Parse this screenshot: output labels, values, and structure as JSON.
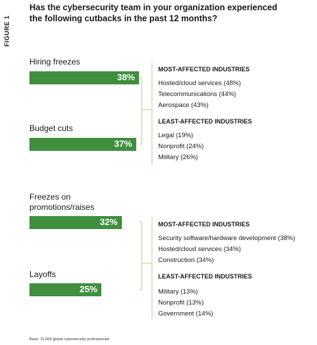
{
  "figure_label": "FIGURE 1",
  "title_line1": "Has the cybersecurity team in your organization experienced",
  "title_line2": "the following cutbacks in the past 12 months?",
  "chart_data": {
    "type": "bar",
    "title": "Has the cybersecurity team in your organization experienced the following cutbacks in the past 12 months?",
    "categories": [
      "Hiring freezes",
      "Budget cuts",
      "Freezes on promotions/raises",
      "Layoffs"
    ],
    "values": [
      38,
      37,
      32,
      25
    ],
    "value_labels": [
      "38%",
      "37%",
      "32%",
      "25%"
    ],
    "xlim": [
      0,
      38
    ],
    "grid": false,
    "legend": "none"
  },
  "categories_display": {
    "hiring": "Hiring freezes",
    "budget": "Budget cuts",
    "promo_line1": "Freezes on",
    "promo_line2": "promotions/raises",
    "layoffs": "Layoffs"
  },
  "group1": {
    "most_header": "MOST-AFFECTED INDUSTRIES",
    "most": [
      "Hosted/cloud services (48%)",
      "Telecommunications (44%)",
      "Aerospace (43%)"
    ],
    "least_header": "LEAST-AFFECTED INDUSTRIES",
    "least": [
      "Legal (19%)",
      "Nonprofit (24%)",
      "Military (26%)"
    ]
  },
  "group2": {
    "most_header": "MOST-AFFECTED INDUSTRIES",
    "most": [
      "Security software/hardware development (38%)",
      "Hosted/cloud services (34%)",
      "Construction (34%)"
    ],
    "least_header": "LEAST-AFFECTED INDUSTRIES",
    "least": [
      "Military (13%)",
      "Nonprofit (13%)",
      "Government (14%)"
    ]
  },
  "footnote": "Base: 12,069 global cybersecurity professionals",
  "colors": {
    "bar": "#3f8f3f",
    "bracket": "#b8d48a"
  }
}
